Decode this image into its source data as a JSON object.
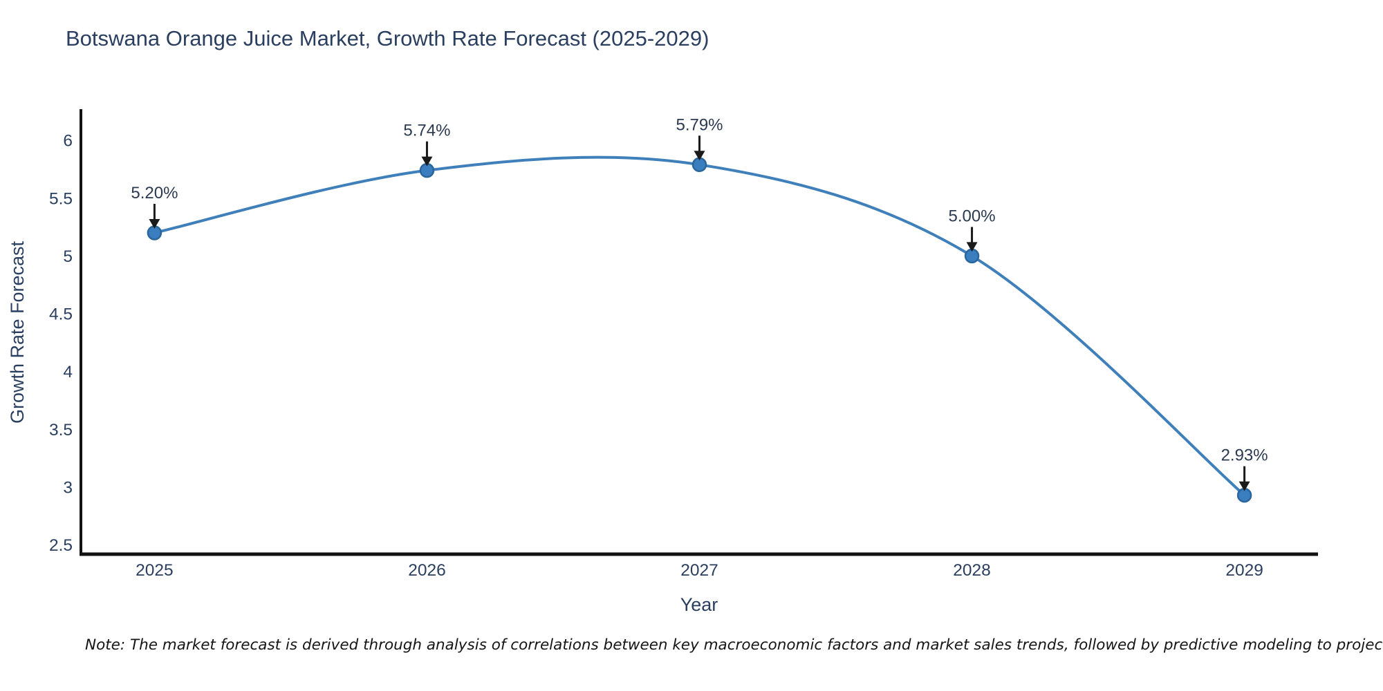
{
  "chart_data": {
    "type": "line",
    "line_shape": "spline",
    "title": "Botswana Orange Juice Market, Growth Rate Forecast (2025-2029)",
    "xlabel": "Year",
    "ylabel": "Growth Rate Forecast",
    "x": [
      2025,
      2026,
      2027,
      2028,
      2029
    ],
    "series": [
      {
        "name": "Growth Rate Forecast",
        "values": [
          5.2,
          5.74,
          5.79,
          5.0,
          2.93
        ],
        "point_labels": [
          "5.20%",
          "5.74%",
          "5.79%",
          "5.00%",
          "2.93%"
        ]
      }
    ],
    "xlim": [
      2024.73,
      2029.27
    ],
    "ylim": [
      2.42,
      6.27
    ],
    "xticks": [
      2025,
      2026,
      2027,
      2028,
      2029
    ],
    "xtick_labels": [
      "2025",
      "2026",
      "2027",
      "2028",
      "2029"
    ],
    "yticks": [
      2.5,
      3,
      3.5,
      4,
      4.5,
      5,
      5.5,
      6
    ],
    "ytick_labels": [
      "2.5",
      "3",
      "3.5",
      "4",
      "4.5",
      "5",
      "5.5",
      "6"
    ],
    "grid": false,
    "legend_position": "none",
    "annotations_have_arrows": true,
    "colors": {
      "line": "#3f7fba",
      "marker_fill": "#3a7ebf",
      "marker_edge": "#2a669c",
      "axis_line": "#121212",
      "arrow": "#1a1a1a",
      "title_text": "#2a3f5f",
      "tick_text": "#2a3f5f",
      "note_text": "#151515"
    },
    "note": "Note: The market forecast is derived through analysis of correlations between key macroeconomic factors and market sales trends, followed by predictive modeling to project future sales"
  }
}
